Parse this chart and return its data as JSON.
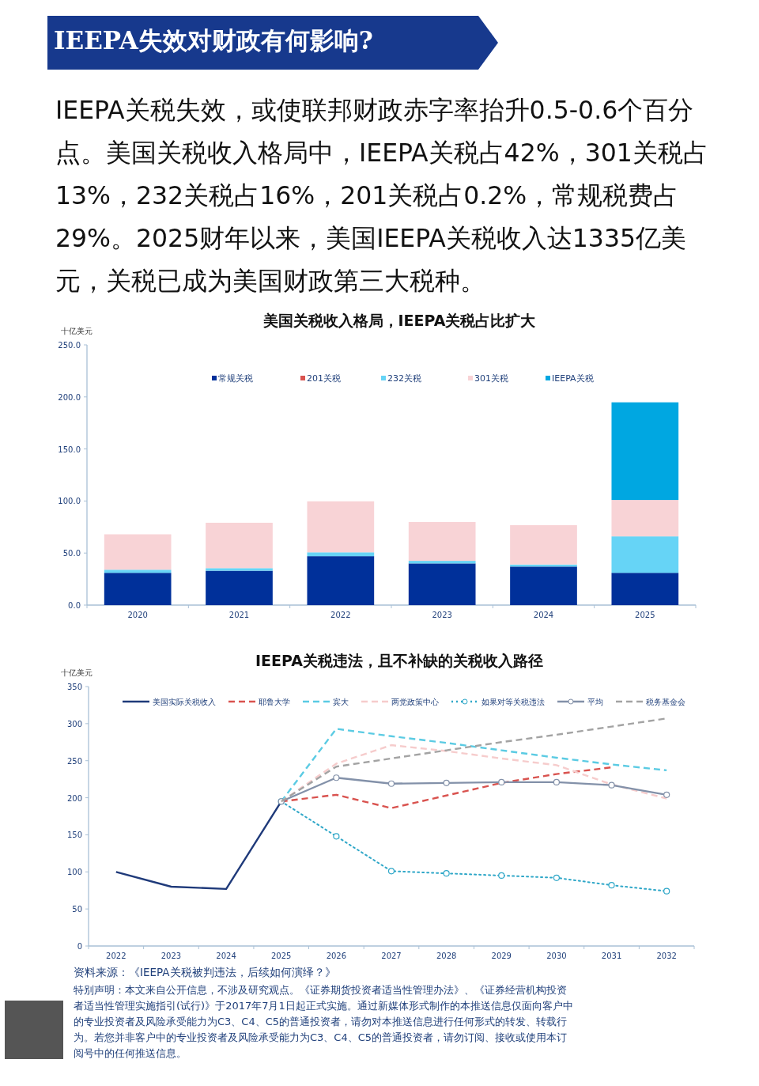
{
  "chart_data": [
    {
      "type": "other",
      "title": "IEEPA失效对财政有何影响?",
      "annotations": [
        "IEEPA关税失效，或使联邦财政赤字率抬升0.5-0.6个百分点。美国关税收入格局中，IEEPA关税占42%，301关税占13%，232关税占16%，201关税占0.2%，常规税费占29%。2025财年以来，美国IEEPA关税收入达1335亿美元，关税已成为美国财政第三大税种。"
      ]
    },
    {
      "type": "bar",
      "title": "美国关税收入格局，IEEPA关税占比扩大",
      "ylabel": "十亿美元",
      "stacked": true,
      "legend": "top",
      "grid": false,
      "categories": [
        "2020",
        "2021",
        "2022",
        "2023",
        "2024",
        "2025"
      ],
      "ylim": [
        0,
        250
      ],
      "yticks": [
        {
          "value": 0,
          "label": "0.0"
        },
        {
          "value": 50,
          "label": "50.0"
        },
        {
          "value": 100,
          "label": "100.0"
        },
        {
          "value": 150,
          "label": "150.0"
        },
        {
          "value": 200,
          "label": "200.0"
        },
        {
          "value": 250,
          "label": "250.0"
        }
      ],
      "series": [
        {
          "name": "常规关税",
          "color": "#00309a",
          "values": [
            31,
            33,
            47,
            40,
            37,
            31
          ]
        },
        {
          "name": "201关税",
          "color": "#d9534f",
          "values": [
            null,
            null,
            null,
            null,
            null,
            null
          ]
        },
        {
          "name": "232关税",
          "color": "#66d4f6",
          "values": [
            3,
            2.5,
            3.7,
            2.5,
            2,
            35
          ]
        },
        {
          "name": "301关税",
          "color": "#f8d3d6",
          "values": [
            34,
            43.6,
            49,
            37.3,
            37.8,
            35
          ]
        },
        {
          "name": "IEEPA关税",
          "color": "#00a7e1",
          "values": [
            0,
            0,
            0,
            0,
            0,
            93.8
          ]
        }
      ]
    },
    {
      "type": "line",
      "title": "IEEPA关税违法，且不补缺的关税收入路径",
      "ylabel": "十亿美元",
      "legend": "top",
      "grid": false,
      "categories": [
        "2022",
        "2023",
        "2024",
        "2025",
        "2026",
        "2027",
        "2028",
        "2029",
        "2030",
        "2031",
        "2032"
      ],
      "ylim": [
        0,
        350
      ],
      "yticks": [
        0,
        50,
        100,
        150,
        200,
        250,
        300,
        350
      ],
      "series": [
        {
          "name": "美国实际关税收入",
          "color": "#1f3a7a",
          "line_style": "solid",
          "marker": "none",
          "values": [
            100,
            80,
            77,
            195,
            null,
            null,
            null,
            null,
            null,
            null,
            null
          ]
        },
        {
          "name": "耶鲁大学",
          "color": "#d9534f",
          "line_style": "dashed",
          "marker": "none",
          "values": [
            null,
            null,
            null,
            195,
            204,
            186,
            203,
            220,
            232,
            241,
            null
          ]
        },
        {
          "name": "宾大",
          "color": "#5bcbe3",
          "line_style": "dashed",
          "marker": "none",
          "values": [
            null,
            null,
            null,
            195,
            293,
            283,
            274,
            264,
            254,
            245,
            237
          ]
        },
        {
          "name": "两党政策中心",
          "color": "#f6cccc",
          "line_style": "dashed",
          "marker": "none",
          "values": [
            null,
            null,
            null,
            195,
            246,
            271,
            263,
            253,
            244,
            218,
            199
          ]
        },
        {
          "name": "如果对等关税违法",
          "color": "#2fa7c8",
          "line_style": "dotted",
          "marker": "circle",
          "values": [
            null,
            null,
            null,
            195,
            148,
            101,
            98,
            95,
            92,
            82,
            74
          ]
        },
        {
          "name": "平均",
          "color": "#8391a9",
          "line_style": "solid",
          "marker": "circle",
          "values": [
            null,
            null,
            null,
            195,
            227,
            219,
            220,
            221,
            221,
            217,
            204
          ]
        },
        {
          "name": "税务基金会",
          "color": "#a3a3a3",
          "line_style": "dashed",
          "marker": "none",
          "values": [
            null,
            null,
            null,
            195,
            242,
            253,
            264,
            275,
            285,
            296,
            307
          ]
        }
      ],
      "annotations": [
        "资料来源：《IEEPA关税被判违法，后续如何演绎？》",
        "特别声明：本文来自公开信息，不涉及研究观点。《证券期货投资者适当性管理办法》、《证券经营机构投资者适当性管理实施指引(试行)》于2017年7月1日起正式实施。通过新媒体形式制作的本推送信息仅面向客户中的专业投资者及风险承受能力为C3、C4、C5的普通投资者，请勿对本推送信息进行任何形式的转发、转载行为。若您并非客户中的专业投资者及风险承受能力为C3、C4、C5的普通投资者，请勿订阅、接收或使用本订阅号中的任何推送信息。"
      ]
    }
  ]
}
